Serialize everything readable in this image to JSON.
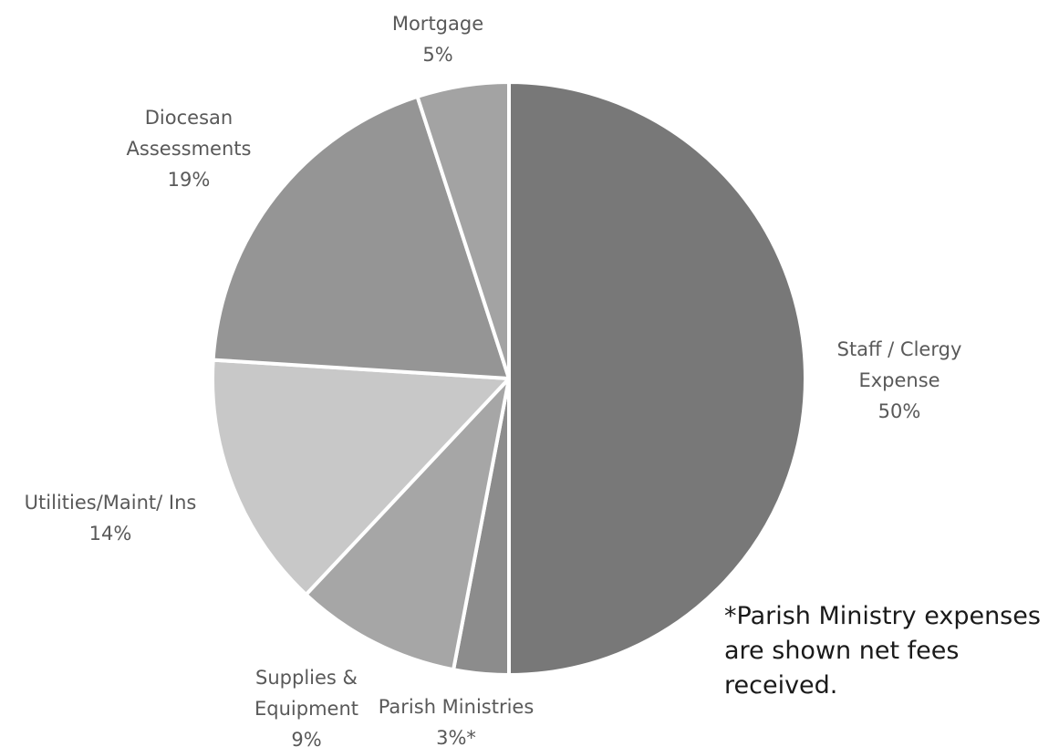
{
  "chart_data": {
    "type": "pie",
    "title": "",
    "start_angle_deg": 0,
    "direction": "clockwise",
    "slices": [
      {
        "name": "Staff / Clergy Expense",
        "value": 50,
        "label_lines": [
          "Staff / Clergy",
          "Expense",
          "50%"
        ],
        "color": "#787878"
      },
      {
        "name": "Parish Ministries",
        "value": 3,
        "label_lines": [
          "Parish Ministries",
          "3%*"
        ],
        "color": "#8c8c8c"
      },
      {
        "name": "Supplies & Equipment",
        "value": 9,
        "label_lines": [
          "Supplies &",
          "Equipment",
          "9%"
        ],
        "color": "#a6a6a6"
      },
      {
        "name": "Utilities/Maint/ Ins",
        "value": 14,
        "label_lines": [
          "Utilities/Maint/  Ins",
          "14%"
        ],
        "color": "#c8c8c8"
      },
      {
        "name": "Diocesan Assessments",
        "value": 19,
        "label_lines": [
          "Diocesan",
          "Assessments",
          "19%"
        ],
        "color": "#959595"
      },
      {
        "name": "Mortgage",
        "value": 5,
        "label_lines": [
          "Mortgage",
          "5%"
        ],
        "color": "#a3a3a3"
      }
    ],
    "annotation": "*Parish Ministry expenses\nare shown net fees\nreceived."
  }
}
